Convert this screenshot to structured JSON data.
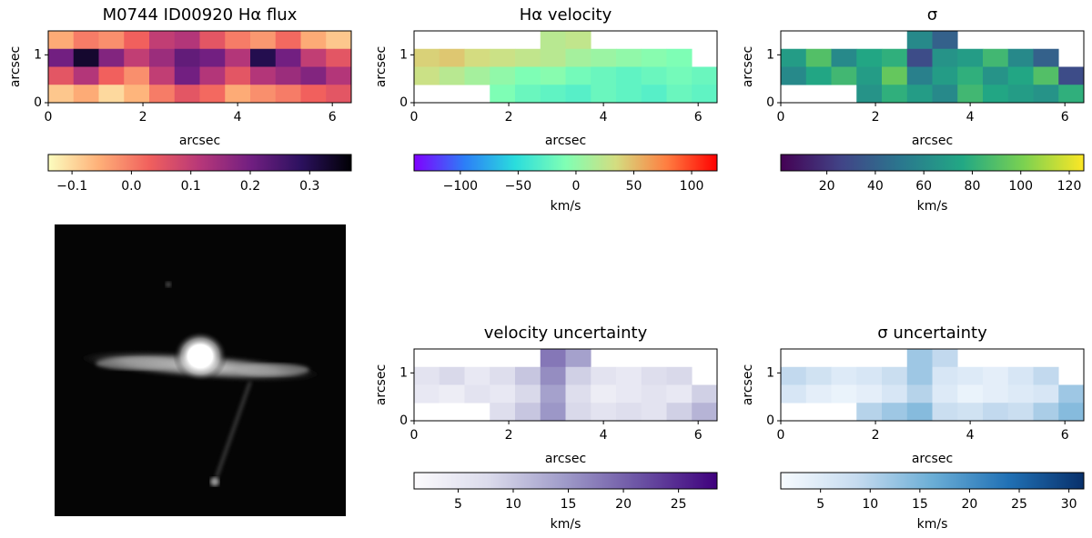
{
  "chart_data": [
    {
      "type": "heatmap",
      "title": "M0744 ID00920 Hα flux",
      "xlabel": "arcsec",
      "ylabel": "arcsec",
      "xlim": [
        0,
        6.4
      ],
      "ylim": [
        0,
        1.5
      ],
      "xticks": [
        0,
        2,
        4,
        6
      ],
      "yticks": [
        0,
        1
      ],
      "values": [
        [
          -0.05,
          0.0,
          -0.02,
          0.03,
          0.1,
          0.12,
          0.05,
          0.0,
          -0.03,
          0.02,
          -0.05,
          -0.08
        ],
        [
          0.2,
          0.33,
          0.18,
          0.1,
          0.15,
          0.22,
          0.2,
          0.12,
          0.3,
          0.2,
          0.1,
          0.05
        ],
        [
          0.05,
          0.12,
          0.03,
          -0.02,
          0.1,
          0.2,
          0.12,
          0.05,
          0.12,
          0.15,
          0.18,
          0.12
        ],
        [
          -0.08,
          -0.05,
          -0.1,
          -0.06,
          0.0,
          0.05,
          0.02,
          -0.05,
          -0.02,
          0.0,
          0.03,
          0.05
        ]
      ],
      "colorbar": {
        "lim": [
          -0.14,
          0.37
        ],
        "ticks": [
          {
            "value": -0.1,
            "label": "−0.1"
          },
          {
            "value": 0.0,
            "label": "0.0"
          },
          0.1,
          0.2,
          0.3
        ],
        "colors": [
          "#fcfdbf",
          "#feb078",
          "#f1605d",
          "#b73779",
          "#721f81",
          "#2c115f",
          "#000004"
        ]
      }
    },
    {
      "type": "heatmap",
      "title": "Hα velocity",
      "xlabel": "arcsec",
      "ylabel": "arcsec",
      "xlim": [
        0,
        6.4
      ],
      "ylim": [
        0,
        1.5
      ],
      "xticks": [
        0,
        2,
        4,
        6
      ],
      "yticks": [
        0,
        1
      ],
      "values": [
        [
          null,
          null,
          null,
          null,
          null,
          20,
          25,
          null,
          null,
          null,
          null,
          null
        ],
        [
          40,
          45,
          35,
          30,
          25,
          20,
          10,
          5,
          0,
          -5,
          -10,
          null
        ],
        [
          30,
          20,
          10,
          0,
          -10,
          -5,
          -15,
          -20,
          -25,
          -20,
          -15,
          -20
        ],
        [
          null,
          null,
          null,
          -10,
          -20,
          -25,
          -30,
          -20,
          -25,
          -30,
          -20,
          -25
        ]
      ],
      "colorbar": {
        "lim": [
          -140,
          122
        ],
        "label": "km/s",
        "ticks": [
          {
            "value": -100,
            "label": "−100"
          },
          {
            "value": -50,
            "label": "−50"
          },
          0,
          50,
          100
        ],
        "colors": [
          "#8000ff",
          "#2c7ef7",
          "#2adddd",
          "#80ffb4",
          "#d4dd80",
          "#ff7e41",
          "#ff0000"
        ]
      }
    },
    {
      "type": "heatmap",
      "title": "σ",
      "xlabel": "arcsec",
      "ylabel": "arcsec",
      "xlim": [
        0,
        6.4
      ],
      "ylim": [
        0,
        1.5
      ],
      "xticks": [
        0,
        2,
        4,
        6
      ],
      "yticks": [
        0,
        1
      ],
      "values": [
        [
          null,
          null,
          null,
          null,
          null,
          60,
          40,
          null,
          null,
          null,
          null,
          null
        ],
        [
          70,
          90,
          60,
          75,
          80,
          30,
          65,
          70,
          85,
          60,
          40,
          null
        ],
        [
          60,
          75,
          85,
          70,
          95,
          55,
          70,
          80,
          65,
          75,
          90,
          30
        ],
        [
          null,
          null,
          null,
          65,
          80,
          70,
          60,
          85,
          75,
          70,
          65,
          80
        ]
      ],
      "colorbar": {
        "lim": [
          1,
          126
        ],
        "label": "km/s",
        "ticks": [
          20,
          40,
          60,
          80,
          100,
          120
        ],
        "colors": [
          "#440154",
          "#414487",
          "#2a788e",
          "#22a884",
          "#7ad151",
          "#fde725"
        ]
      }
    },
    {
      "type": "heatmap",
      "title": "velocity uncertainty",
      "xlabel": "arcsec",
      "ylabel": "arcsec",
      "xlim": [
        0,
        6.4
      ],
      "ylim": [
        0,
        1.5
      ],
      "xticks": [
        0,
        2,
        4,
        6
      ],
      "yticks": [
        0,
        1
      ],
      "values": [
        [
          null,
          null,
          null,
          null,
          null,
          18,
          14,
          null,
          null,
          null,
          null,
          null
        ],
        [
          6,
          8,
          5,
          7,
          10,
          16,
          9,
          6,
          5,
          7,
          8,
          null
        ],
        [
          5,
          4,
          6,
          5,
          8,
          14,
          7,
          4,
          5,
          6,
          5,
          9
        ],
        [
          null,
          null,
          null,
          7,
          10,
          15,
          8,
          6,
          7,
          6,
          9,
          12
        ]
      ],
      "colorbar": {
        "lim": [
          1,
          28.5
        ],
        "label": "km/s",
        "ticks": [
          5,
          10,
          15,
          20,
          25
        ],
        "colors": [
          "#fcfbfd",
          "#dadaeb",
          "#9e9ac8",
          "#6a51a3",
          "#3f007d"
        ]
      }
    },
    {
      "type": "heatmap",
      "title": "σ uncertainty",
      "xlabel": "arcsec",
      "ylabel": "arcsec",
      "xlim": [
        0,
        6.4
      ],
      "ylim": [
        0,
        1.5
      ],
      "xticks": [
        0,
        2,
        4,
        6
      ],
      "yticks": [
        0,
        1
      ],
      "values": [
        [
          null,
          null,
          null,
          null,
          null,
          12,
          9,
          null,
          null,
          null,
          null,
          null
        ],
        [
          9,
          7,
          5,
          6,
          8,
          12,
          6,
          5,
          4,
          6,
          9,
          null
        ],
        [
          6,
          4,
          3,
          4,
          6,
          10,
          5,
          3,
          4,
          5,
          6,
          12
        ],
        [
          null,
          null,
          null,
          10,
          12,
          14,
          8,
          7,
          9,
          8,
          11,
          14
        ]
      ],
      "colorbar": {
        "lim": [
          1,
          31.5
        ],
        "label": "km/s",
        "ticks": [
          5,
          10,
          15,
          20,
          25,
          30
        ],
        "colors": [
          "#f7fbff",
          "#c6dbef",
          "#6baed6",
          "#2171b5",
          "#08306b"
        ]
      }
    }
  ]
}
